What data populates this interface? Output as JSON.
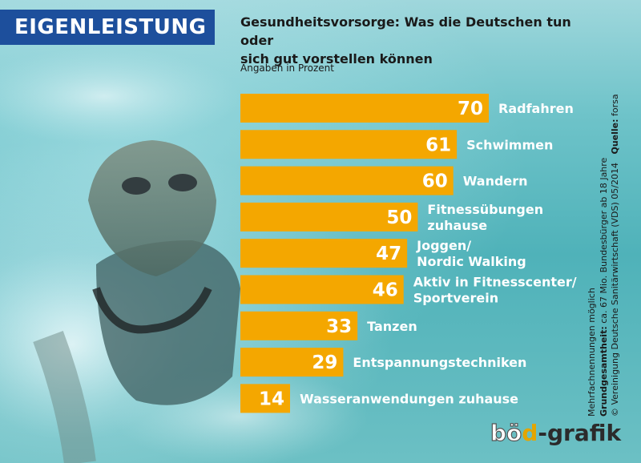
{
  "header": {
    "tag": "EIGENLEISTUNG",
    "headline_line1": "Gesundheitsvorsorge: Was die Deutschen tun oder",
    "headline_line2": "sich gut vorstellen können",
    "unit_note": "Angaben in Prozent"
  },
  "footnote": {
    "line1": "Mehrfachnennungen möglich",
    "line2_bold": "Grundgesamtheit:",
    "line2_rest": " ca. 67 Mio. Bundesbürger ab 18 Jahre",
    "line3_copy": "© Vereinigung Deutsche Sanitärwirtschaft (VDS)  05/2014",
    "line3_source_label": "Quelle:",
    "line3_source": " forsa"
  },
  "logo": {
    "part1": "b",
    "part2": "ö",
    "part3": "d",
    "part4": "-grafik"
  },
  "colors": {
    "bar": "#f4a700",
    "title_bg": "#1d4f9c",
    "water": "#5bb8be"
  },
  "chart_data": {
    "type": "bar",
    "orientation": "horizontal",
    "title": "Gesundheitsvorsorge: Was die Deutschen tun oder sich gut vorstellen können",
    "ylabel": "",
    "xlabel": "Angaben in Prozent",
    "grid": false,
    "categories": [
      [
        "Radfahren"
      ],
      [
        "Schwimmen"
      ],
      [
        "Wandern"
      ],
      [
        "Fitnessübungen",
        "zuhause"
      ],
      [
        "Joggen/",
        "Nordic Walking"
      ],
      [
        "Aktiv in Fitnesscenter/",
        "Sportverein"
      ],
      [
        "Tanzen"
      ],
      [
        "Entspannungstechniken"
      ],
      [
        "Wasseranwendungen zuhause"
      ]
    ],
    "values": [
      70,
      61,
      60,
      50,
      47,
      46,
      33,
      29,
      14
    ],
    "xlim": [
      0,
      70
    ]
  }
}
